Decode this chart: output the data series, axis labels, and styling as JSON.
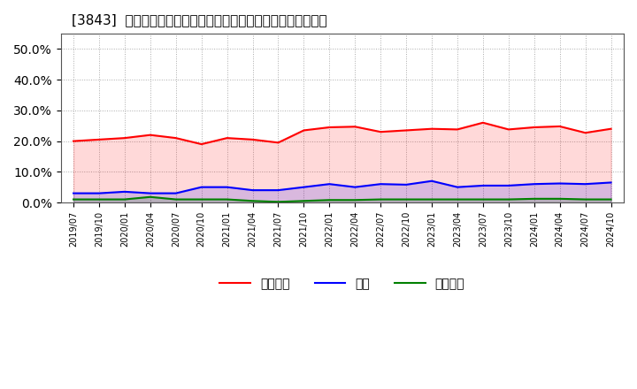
{
  "title": "[3843]  売上債権、在庫、買入債務の総資産に対する比率の推移",
  "legend_labels": [
    "売上債権",
    "在庫",
    "買入債務"
  ],
  "line_colors": [
    "#ff0000",
    "#0000ff",
    "#008000"
  ],
  "background_color": "#ffffff",
  "plot_bg_color": "#ffffff",
  "ylim": [
    0.0,
    0.55
  ],
  "yticks": [
    0.0,
    0.1,
    0.2,
    0.3,
    0.4,
    0.5
  ],
  "dates": [
    "2019/07",
    "2019/10",
    "2020/01",
    "2020/04",
    "2020/07",
    "2020/10",
    "2021/01",
    "2021/04",
    "2021/07",
    "2021/10",
    "2022/01",
    "2022/04",
    "2022/07",
    "2022/10",
    "2023/01",
    "2023/04",
    "2023/07",
    "2023/10",
    "2024/01",
    "2024/04",
    "2024/07",
    "2024/10"
  ],
  "uriken": [
    0.2,
    0.205,
    0.21,
    0.22,
    0.21,
    0.19,
    0.21,
    0.205,
    0.195,
    0.235,
    0.245,
    0.247,
    0.23,
    0.235,
    0.24,
    0.238,
    0.26,
    0.238,
    0.245,
    0.248,
    0.227,
    0.24
  ],
  "zaiko": [
    0.03,
    0.03,
    0.035,
    0.03,
    0.03,
    0.05,
    0.05,
    0.04,
    0.04,
    0.05,
    0.06,
    0.05,
    0.06,
    0.058,
    0.07,
    0.05,
    0.055,
    0.055,
    0.06,
    0.062,
    0.06,
    0.065
  ],
  "kaiire": [
    0.01,
    0.01,
    0.01,
    0.018,
    0.01,
    0.01,
    0.01,
    0.005,
    0.002,
    0.005,
    0.008,
    0.008,
    0.01,
    0.01,
    0.01,
    0.01,
    0.01,
    0.01,
    0.012,
    0.012,
    0.01,
    0.01
  ]
}
